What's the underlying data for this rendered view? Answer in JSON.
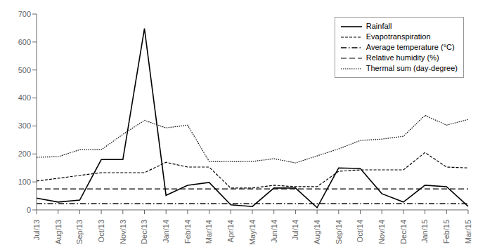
{
  "chart_data": {
    "type": "line",
    "categories": [
      "Jul/13",
      "Aug/13",
      "Sep/13",
      "Oct/13",
      "Nov/13",
      "Dec/13",
      "Jan/14",
      "Feb/14",
      "Mar/14",
      "Apr/14",
      "May/14",
      "Jun/14",
      "Jul/14",
      "Aug/14",
      "Sep/14",
      "Oct/14",
      "Nov/14",
      "Dec/14",
      "Jan/15",
      "Feb/15",
      "Mar/15"
    ],
    "series": [
      {
        "name": "Rainfall",
        "color": "#000000",
        "line_style": "solid",
        "values": [
          42,
          28,
          35,
          180,
          180,
          648,
          52,
          88,
          98,
          18,
          12,
          78,
          78,
          8,
          150,
          148,
          58,
          28,
          88,
          83,
          13
        ]
      },
      {
        "name": "Evapotranspiration",
        "color": "#000000",
        "line_style": "densely dashed",
        "values": [
          103,
          113,
          123,
          133,
          133,
          133,
          170,
          153,
          153,
          78,
          78,
          88,
          83,
          83,
          138,
          143,
          143,
          143,
          205,
          153,
          150
        ]
      },
      {
        "name": "Average temperature (°C)",
        "color": "#000000",
        "line_style": "dashdot",
        "values": [
          22,
          22,
          22,
          22,
          22,
          22,
          22,
          22,
          22,
          22,
          22,
          22,
          22,
          22,
          22,
          22,
          22,
          22,
          22,
          22,
          22
        ]
      },
      {
        "name": "Relative humidity (%)",
        "color": "#000000",
        "line_style": "dashed",
        "values": [
          75,
          75,
          75,
          75,
          75,
          75,
          75,
          75,
          75,
          75,
          75,
          75,
          75,
          75,
          75,
          75,
          75,
          75,
          75,
          75,
          75
        ]
      },
      {
        "name": "Thermal sum (day-degree)",
        "color": "#000000",
        "line_style": "dotted",
        "values": [
          188,
          190,
          215,
          215,
          270,
          320,
          293,
          303,
          173,
          173,
          173,
          183,
          168,
          193,
          218,
          248,
          253,
          263,
          338,
          303,
          323
        ]
      }
    ],
    "ylim": [
      0,
      700
    ],
    "yticks": [
      0,
      100,
      200,
      300,
      400,
      500,
      600,
      700
    ],
    "grid": false,
    "legend": "upper right"
  }
}
